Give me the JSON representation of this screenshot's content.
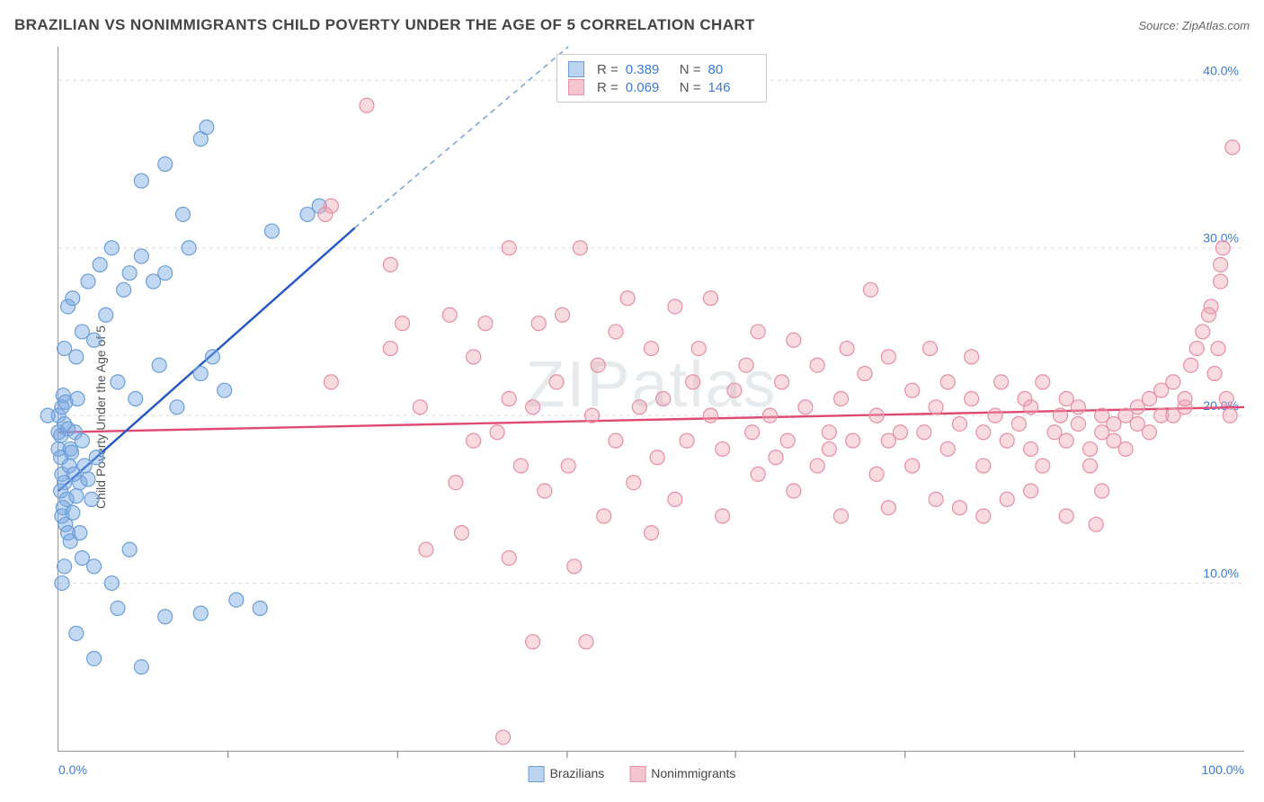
{
  "header": {
    "title": "BRAZILIAN VS NONIMMIGRANTS CHILD POVERTY UNDER THE AGE OF 5 CORRELATION CHART",
    "source_prefix": "Source: ",
    "source": "ZipAtlas.com"
  },
  "watermark": "ZIPatlas",
  "axes": {
    "ylabel": "Child Poverty Under the Age of 5",
    "x_min_label": "0.0%",
    "x_max_label": "100.0%",
    "xlim": [
      0,
      100
    ],
    "ylim": [
      0,
      42
    ],
    "y_ticks": [
      10,
      20,
      30,
      40
    ],
    "y_tick_labels": [
      "10.0%",
      "20.0%",
      "30.0%",
      "40.0%"
    ],
    "x_minor_ticks": [
      14.3,
      28.6,
      42.9,
      57.1,
      71.4,
      85.7
    ],
    "grid_color": "#d9d9d9",
    "axis_color": "#888888",
    "tick_label_color": "#3a7bd5",
    "tick_label_fontsize": 14
  },
  "stats_box": {
    "rows": [
      {
        "r_label": "R =",
        "r_value": "0.389",
        "n_label": "N =",
        "n_value": "80"
      },
      {
        "r_label": "R =",
        "r_value": "0.069",
        "n_label": "N =",
        "n_value": "146"
      }
    ]
  },
  "legend_bottom": {
    "series_a": "Brazilians",
    "series_b": "Nonimmigrants"
  },
  "series": {
    "brazilians": {
      "color_fill": "rgba(122,168,226,0.45)",
      "color_stroke": "#6c9fd8",
      "swatch_fill": "#bcd3ef",
      "swatch_border": "#6c9fd8",
      "trend_color": "#2457c5",
      "trend_dash_color": "#7aa0d6",
      "trend": {
        "x1": 0,
        "y1": 15.5,
        "x2": 25,
        "y2": 31.2,
        "x2_ext": 43,
        "y2_ext": 42
      },
      "marker_radius": 8,
      "marker_stroke_width": 1.2,
      "points": [
        [
          0,
          20
        ],
        [
          0,
          19
        ],
        [
          0.2,
          18.8
        ],
        [
          0.3,
          20.5
        ],
        [
          0.5,
          19.5
        ],
        [
          0,
          18
        ],
        [
          0.4,
          21.2
        ],
        [
          0.8,
          19.2
        ],
        [
          0.2,
          17.5
        ],
        [
          1,
          18
        ],
        [
          0.6,
          20.8
        ],
        [
          1.4,
          19
        ],
        [
          0.3,
          16.5
        ],
        [
          1.6,
          21
        ],
        [
          1.1,
          17.8
        ],
        [
          2,
          18.5
        ],
        [
          0.5,
          16
        ],
        [
          0.9,
          17
        ],
        [
          0.2,
          15.5
        ],
        [
          1.3,
          16.5
        ],
        [
          2.2,
          17
        ],
        [
          0.7,
          15
        ],
        [
          1.8,
          16
        ],
        [
          0.4,
          14.5
        ],
        [
          1.5,
          15.2
        ],
        [
          2.5,
          16.2
        ],
        [
          0.3,
          14
        ],
        [
          0.6,
          13.5
        ],
        [
          1.2,
          14.2
        ],
        [
          2.8,
          15
        ],
        [
          0.8,
          13
        ],
        [
          3.2,
          17.5
        ],
        [
          0.5,
          24
        ],
        [
          1.5,
          23.5
        ],
        [
          2,
          25
        ],
        [
          0.8,
          26.5
        ],
        [
          3,
          24.5
        ],
        [
          1.2,
          27
        ],
        [
          4,
          26
        ],
        [
          2.5,
          28
        ],
        [
          5.5,
          27.5
        ],
        [
          3.5,
          29
        ],
        [
          6,
          28.5
        ],
        [
          4.5,
          30
        ],
        [
          9,
          28.5
        ],
        [
          7,
          29.5
        ],
        [
          8,
          28
        ],
        [
          5,
          22
        ],
        [
          6.5,
          21
        ],
        [
          8.5,
          23
        ],
        [
          10,
          20.5
        ],
        [
          12,
          22.5
        ],
        [
          11,
          30
        ],
        [
          14,
          21.5
        ],
        [
          13,
          23.5
        ],
        [
          21,
          32
        ],
        [
          22,
          32.5
        ],
        [
          18,
          31
        ],
        [
          12,
          36.5
        ],
        [
          12.5,
          37.2
        ],
        [
          9,
          35
        ],
        [
          7,
          34
        ],
        [
          10.5,
          32
        ],
        [
          3,
          11
        ],
        [
          4.5,
          10
        ],
        [
          6,
          12
        ],
        [
          5,
          8.5
        ],
        [
          9,
          8
        ],
        [
          1.5,
          7
        ],
        [
          3,
          5.5
        ],
        [
          7,
          5
        ],
        [
          12,
          8.2
        ],
        [
          15,
          9
        ],
        [
          17,
          8.5
        ],
        [
          1,
          12.5
        ],
        [
          2,
          11.5
        ],
        [
          0.5,
          11
        ],
        [
          0.3,
          10
        ],
        [
          1.8,
          13
        ],
        [
          -0.9,
          20
        ]
      ]
    },
    "nonimmigrants": {
      "color_fill": "rgba(238,163,180,0.40)",
      "color_stroke": "#e78fa4",
      "swatch_fill": "#f4c4cf",
      "swatch_border": "#e78fa4",
      "trend_color": "#e04a72",
      "trend": {
        "x1": 0,
        "y1": 19.0,
        "x2": 100,
        "y2": 20.5
      },
      "marker_radius": 8,
      "marker_stroke_width": 1.2,
      "points": [
        [
          26,
          38.5
        ],
        [
          23,
          32.5
        ],
        [
          22.5,
          32
        ],
        [
          23,
          22
        ],
        [
          28,
          29
        ],
        [
          28,
          24
        ],
        [
          29,
          25.5
        ],
        [
          30.5,
          20.5
        ],
        [
          31,
          12
        ],
        [
          33,
          26
        ],
        [
          33.5,
          16
        ],
        [
          34,
          13
        ],
        [
          35,
          23.5
        ],
        [
          35,
          18.5
        ],
        [
          36,
          25.5
        ],
        [
          37,
          19
        ],
        [
          37.5,
          0.8
        ],
        [
          38,
          21
        ],
        [
          38,
          11.5
        ],
        [
          38,
          30
        ],
        [
          39,
          17
        ],
        [
          40,
          20.5
        ],
        [
          40.5,
          25.5
        ],
        [
          40,
          6.5
        ],
        [
          41,
          15.5
        ],
        [
          42,
          22
        ],
        [
          42.5,
          26
        ],
        [
          43,
          17
        ],
        [
          43.5,
          11
        ],
        [
          44,
          30
        ],
        [
          44.5,
          6.5
        ],
        [
          45,
          20
        ],
        [
          45.5,
          23
        ],
        [
          46,
          14
        ],
        [
          47,
          25
        ],
        [
          47,
          18.5
        ],
        [
          48,
          27
        ],
        [
          48.5,
          16
        ],
        [
          49,
          20.5
        ],
        [
          50,
          24
        ],
        [
          50,
          13
        ],
        [
          50.5,
          17.5
        ],
        [
          51,
          21
        ],
        [
          52,
          26.5
        ],
        [
          52,
          15
        ],
        [
          53,
          18.5
        ],
        [
          53.5,
          22
        ],
        [
          54,
          24
        ],
        [
          55,
          20
        ],
        [
          55,
          27
        ],
        [
          56,
          18
        ],
        [
          56,
          14
        ],
        [
          57,
          21.5
        ],
        [
          58,
          23
        ],
        [
          58.5,
          19
        ],
        [
          59,
          16.5
        ],
        [
          59,
          25
        ],
        [
          60,
          20
        ],
        [
          60.5,
          17.5
        ],
        [
          61,
          22
        ],
        [
          61.5,
          18.5
        ],
        [
          62,
          24.5
        ],
        [
          62,
          15.5
        ],
        [
          63,
          20.5
        ],
        [
          64,
          23
        ],
        [
          64,
          17
        ],
        [
          65,
          19
        ],
        [
          65,
          18
        ],
        [
          66,
          21
        ],
        [
          66.5,
          24
        ],
        [
          67,
          18.5
        ],
        [
          68,
          22.5
        ],
        [
          68.5,
          27.5
        ],
        [
          69,
          16.5
        ],
        [
          69,
          20
        ],
        [
          70,
          18.5
        ],
        [
          70,
          23.5
        ],
        [
          71,
          19
        ],
        [
          72,
          21.5
        ],
        [
          72,
          17
        ],
        [
          73,
          19
        ],
        [
          73.5,
          24
        ],
        [
          74,
          20.5
        ],
        [
          75,
          18
        ],
        [
          75,
          22
        ],
        [
          76,
          19.5
        ],
        [
          76,
          14.5
        ],
        [
          77,
          21
        ],
        [
          77,
          23.5
        ],
        [
          78,
          19
        ],
        [
          78,
          17
        ],
        [
          79,
          20
        ],
        [
          79.5,
          22
        ],
        [
          80,
          18.5
        ],
        [
          80,
          15
        ],
        [
          81,
          19.5
        ],
        [
          81.5,
          21
        ],
        [
          82,
          18
        ],
        [
          82,
          20.5
        ],
        [
          83,
          22
        ],
        [
          83,
          17
        ],
        [
          84,
          19
        ],
        [
          84.5,
          20
        ],
        [
          85,
          18.5
        ],
        [
          85,
          21
        ],
        [
          86,
          19.5
        ],
        [
          86,
          20.5
        ],
        [
          87,
          18
        ],
        [
          87,
          17
        ],
        [
          87.5,
          13.5
        ],
        [
          88,
          19
        ],
        [
          88,
          20
        ],
        [
          89,
          18.5
        ],
        [
          89,
          19.5
        ],
        [
          90,
          20
        ],
        [
          90,
          18
        ],
        [
          91,
          19.5
        ],
        [
          91,
          20.5
        ],
        [
          92,
          19
        ],
        [
          92,
          21
        ],
        [
          93,
          20
        ],
        [
          93,
          21.5
        ],
        [
          94,
          20
        ],
        [
          94,
          22
        ],
        [
          95,
          20.5
        ],
        [
          95,
          21
        ],
        [
          95.5,
          23
        ],
        [
          96,
          24
        ],
        [
          96.5,
          25
        ],
        [
          97,
          26
        ],
        [
          97.2,
          26.5
        ],
        [
          97.5,
          22.5
        ],
        [
          97.8,
          24
        ],
        [
          98,
          28
        ],
        [
          98,
          29
        ],
        [
          98.2,
          30
        ],
        [
          98.5,
          21
        ],
        [
          98.8,
          20
        ],
        [
          99,
          36
        ],
        [
          88,
          15.5
        ],
        [
          85,
          14
        ],
        [
          82,
          15.5
        ],
        [
          78,
          14
        ],
        [
          74,
          15
        ],
        [
          70,
          14.5
        ],
        [
          66,
          14
        ]
      ]
    }
  },
  "styles": {
    "trend_line_width": 2.4,
    "trend_dash": "6 5",
    "background_color": "#ffffff"
  }
}
